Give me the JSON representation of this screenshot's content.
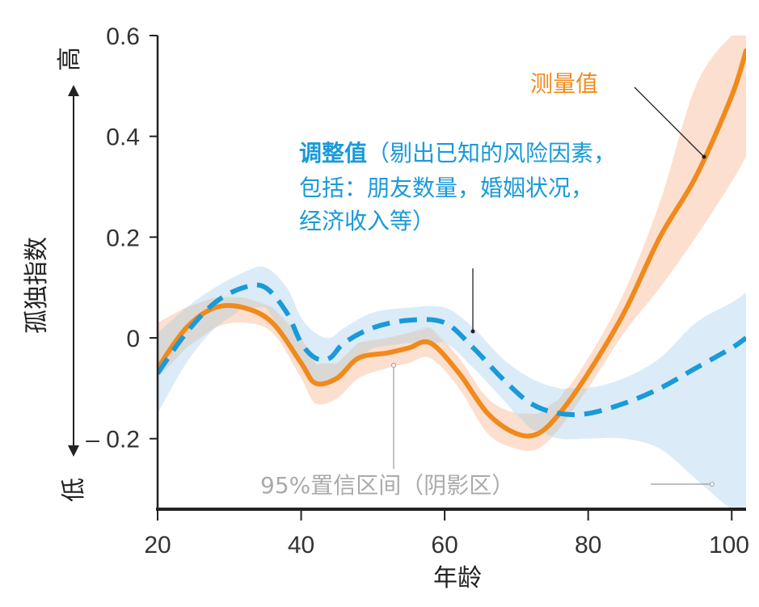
{
  "chart_data": {
    "type": "line",
    "xlabel": "年龄",
    "ylabel": "孤独指数",
    "y_high_label": "高",
    "y_low_label": "低",
    "xlim": [
      20,
      102
    ],
    "ylim": [
      -0.34,
      0.6
    ],
    "x_ticks": [
      20,
      40,
      60,
      80,
      100
    ],
    "x_tick_labels": [
      "20",
      "40",
      "60",
      "80",
      "100"
    ],
    "y_ticks": [
      0.6,
      0.4,
      0.2,
      0,
      -0.2
    ],
    "y_tick_labels": [
      "0.6",
      "0.4",
      "0.2",
      "0",
      "– 0.2"
    ],
    "series": [
      {
        "name": "测量值",
        "style": "solid",
        "color": "#f08a1c",
        "band_color": "#fbd9c6",
        "x": [
          20,
          24,
          28,
          32,
          36,
          40,
          42,
          45,
          48,
          52,
          55,
          58,
          62,
          66,
          70,
          73,
          76,
          80,
          85,
          90,
          95,
          100,
          102
        ],
        "y": [
          -0.06,
          0.02,
          0.06,
          0.06,
          0.03,
          -0.05,
          -0.09,
          -0.08,
          -0.04,
          -0.03,
          -0.02,
          -0.01,
          -0.07,
          -0.15,
          -0.19,
          -0.19,
          -0.15,
          -0.07,
          0.05,
          0.2,
          0.32,
          0.48,
          0.57
        ],
        "upper": [
          0.03,
          0.06,
          0.08,
          0.08,
          0.06,
          0.0,
          -0.05,
          -0.05,
          -0.01,
          0.0,
          0.01,
          0.02,
          -0.04,
          -0.12,
          -0.15,
          -0.15,
          -0.12,
          -0.04,
          0.09,
          0.27,
          0.5,
          0.6,
          0.6
        ],
        "lower": [
          -0.08,
          -0.02,
          0.02,
          0.03,
          0.01,
          -0.08,
          -0.13,
          -0.12,
          -0.08,
          -0.06,
          -0.05,
          -0.04,
          -0.1,
          -0.19,
          -0.22,
          -0.22,
          -0.18,
          -0.1,
          0.01,
          0.1,
          0.2,
          0.31,
          0.36
        ]
      },
      {
        "name": "调整值",
        "style": "dashed",
        "color": "#1a9ad9",
        "band_color": "#cfe6f6",
        "x": [
          20,
          24,
          28,
          32,
          35,
          38,
          40,
          42,
          44,
          46,
          50,
          55,
          60,
          64,
          68,
          72,
          76,
          80,
          85,
          90,
          95,
          100,
          102
        ],
        "y": [
          -0.07,
          0.01,
          0.07,
          0.1,
          0.1,
          0.05,
          -0.01,
          -0.04,
          -0.04,
          -0.01,
          0.02,
          0.035,
          0.03,
          -0.02,
          -0.08,
          -0.13,
          -0.15,
          -0.15,
          -0.13,
          -0.1,
          -0.06,
          -0.02,
          0.0
        ],
        "upper": [
          0.01,
          0.06,
          0.1,
          0.13,
          0.14,
          0.1,
          0.04,
          0.01,
          0.0,
          0.02,
          0.05,
          0.06,
          0.06,
          0.02,
          -0.04,
          -0.08,
          -0.1,
          -0.1,
          -0.08,
          -0.04,
          0.03,
          0.07,
          0.09
        ],
        "lower": [
          -0.15,
          -0.05,
          0.02,
          0.06,
          0.06,
          0.0,
          -0.05,
          -0.09,
          -0.09,
          -0.06,
          -0.02,
          -0.01,
          -0.01,
          -0.06,
          -0.12,
          -0.18,
          -0.2,
          -0.2,
          -0.2,
          -0.22,
          -0.28,
          -0.34,
          -0.34
        ]
      }
    ],
    "annotations": {
      "measured_label": "测量值",
      "adjusted_label_bold": "调整值",
      "adjusted_label_lines": [
        "（剔出已知的风险因素，",
        "包括：朋友数量，婚姻状况，",
        "经济收入等）"
      ],
      "ci_label": "95%置信区间（阴影区）"
    },
    "colors": {
      "axis": "#222222",
      "ci_text": "#aaaaaa",
      "overlap_band": "#d9d4d0"
    }
  }
}
